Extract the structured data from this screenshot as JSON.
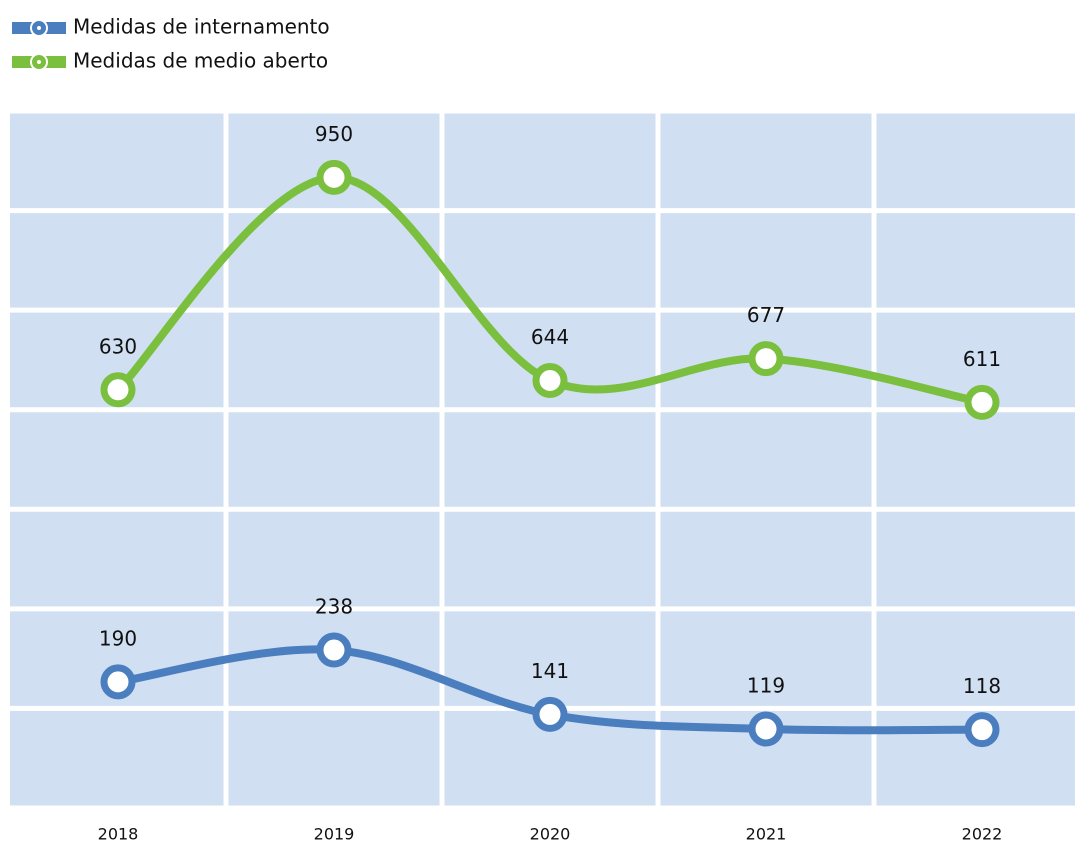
{
  "chart_data": {
    "type": "line",
    "categories": [
      "2018",
      "2019",
      "2020",
      "2021",
      "2022"
    ],
    "series": [
      {
        "name": "Medidas de internamento",
        "color": "#4a7ebf",
        "values": [
          190,
          238,
          141,
          119,
          118
        ]
      },
      {
        "name": "Medidas de medio aberto",
        "color": "#7abf3e",
        "values": [
          630,
          950,
          644,
          677,
          611
        ]
      }
    ],
    "ylim": [
      0,
      1050
    ],
    "yticks": [
      0,
      150,
      300,
      450,
      600,
      750,
      900,
      1050
    ],
    "grid": true,
    "legend": "top-left",
    "background": "#d0dff2"
  }
}
